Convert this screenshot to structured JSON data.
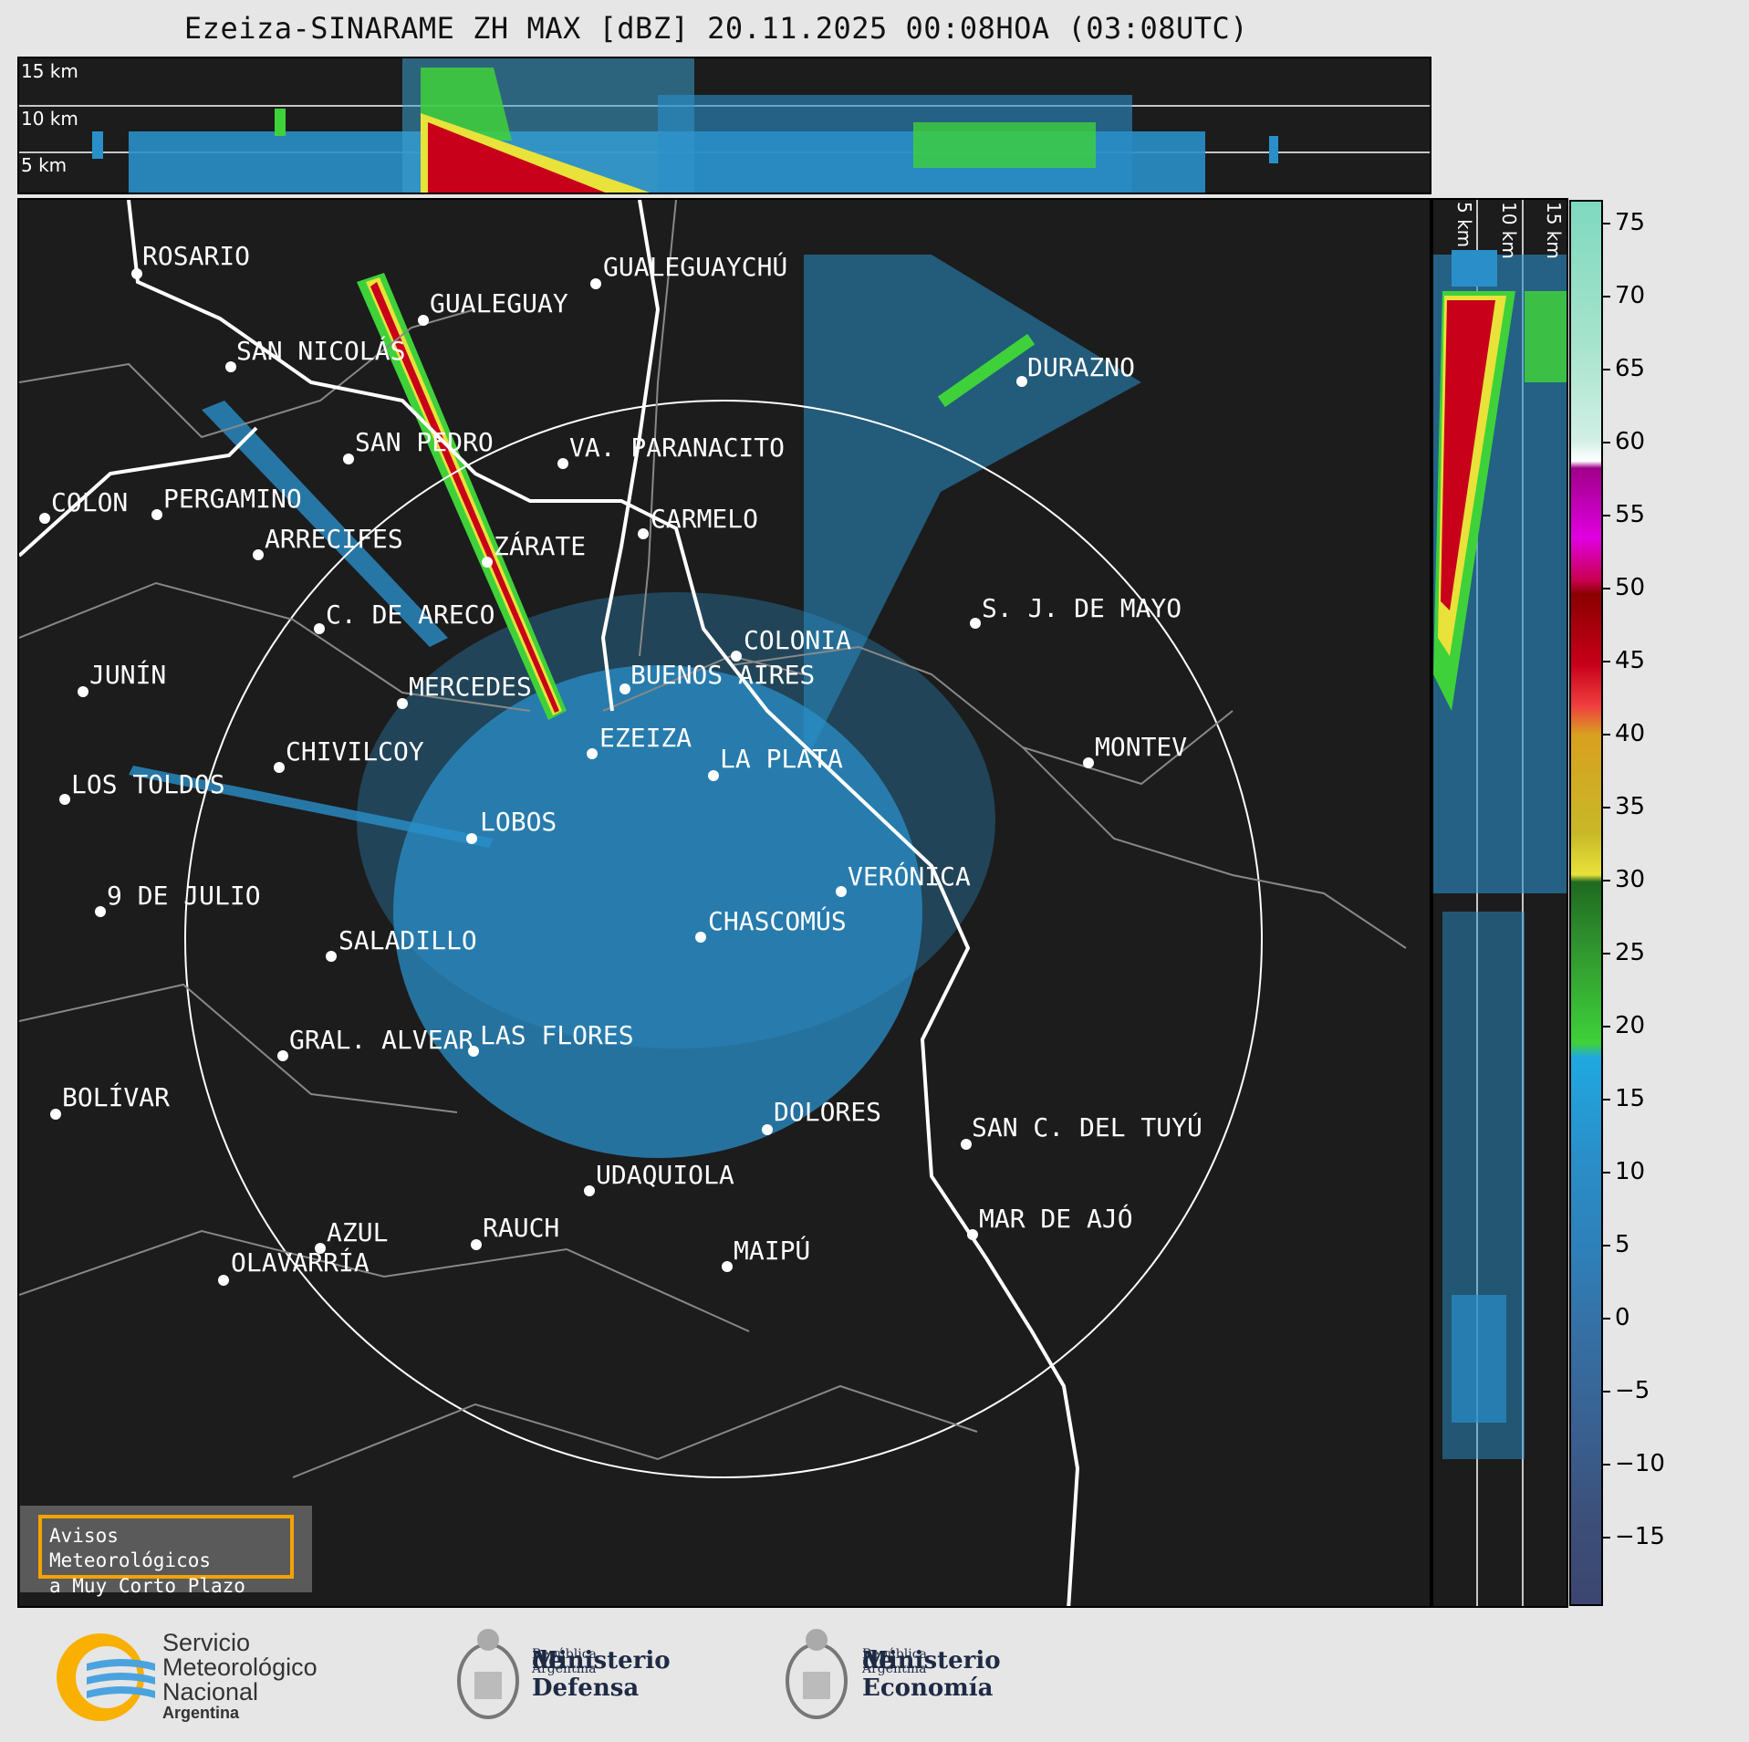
{
  "title": "Ezeiza-SINARAME ZH MAX [dBZ] 20.11.2025 00:08HOA (03:08UTC)",
  "altitudes_top": [
    "15 km",
    "10 km",
    "5 km"
  ],
  "altitudes_right": [
    "5 km",
    "10 km",
    "15 km"
  ],
  "colorbar": {
    "ticks": [
      "75",
      "70",
      "65",
      "60",
      "55",
      "50",
      "45",
      "40",
      "35",
      "30",
      "25",
      "20",
      "15",
      "10",
      "5",
      "0",
      "−5",
      "−10",
      "−15"
    ]
  },
  "cities": [
    {
      "name": "ROSARIO"
    },
    {
      "name": "GUALEGUAYCHÚ"
    },
    {
      "name": "GUALEGUAY"
    },
    {
      "name": "SAN NICOLÁS"
    },
    {
      "name": "DURAZNO"
    },
    {
      "name": "SAN PEDRO"
    },
    {
      "name": "VA. PARANACITO"
    },
    {
      "name": "COLON"
    },
    {
      "name": "PERGAMINO"
    },
    {
      "name": "CARMELO"
    },
    {
      "name": "ARRECIFES"
    },
    {
      "name": "ZÁRATE"
    },
    {
      "name": "S. J. DE MAYO"
    },
    {
      "name": "C. DE ARECO"
    },
    {
      "name": "COLONIA"
    },
    {
      "name": "JUNÍN"
    },
    {
      "name": "BUENOS AIRES"
    },
    {
      "name": "MERCEDES"
    },
    {
      "name": "EZEIZA"
    },
    {
      "name": "MONTEV"
    },
    {
      "name": "CHIVILCOY"
    },
    {
      "name": "LA PLATA"
    },
    {
      "name": "LOS TOLDOS"
    },
    {
      "name": "LOBOS"
    },
    {
      "name": "VERÓNICA"
    },
    {
      "name": "9 DE JULIO"
    },
    {
      "name": "CHASCOMÚS"
    },
    {
      "name": "SALADILLO"
    },
    {
      "name": "GRAL. ALVEAR"
    },
    {
      "name": "LAS FLORES"
    },
    {
      "name": "BOLÍVAR"
    },
    {
      "name": "DOLORES"
    },
    {
      "name": "SAN C. DEL TUYÚ"
    },
    {
      "name": "UDAQUIOLA"
    },
    {
      "name": "AZUL"
    },
    {
      "name": "RAUCH"
    },
    {
      "name": "MAR DE AJÓ"
    },
    {
      "name": "OLAVARRÍA"
    },
    {
      "name": "MAIPÚ"
    }
  ],
  "notice": {
    "line1": "Avisos Meteorológicos",
    "line2": "a Muy Corto Plazo"
  },
  "logos": {
    "smn": {
      "line1": "Servicio",
      "line2": "Meteorológico",
      "line3": "Nacional",
      "line4": "Argentina"
    },
    "defensa": {
      "line1": "Ministerio",
      "line2": "de Defensa",
      "line3": "República Argentina"
    },
    "economia": {
      "line1": "Ministerio",
      "line2": "de Economía",
      "line3": "República Argentina"
    }
  },
  "colors": {
    "background": "#1c1c1c",
    "echo_blue": "#2a8fc9",
    "echo_green": "#3fd13a",
    "echo_yellow": "#e8e23a",
    "echo_red": "#c8001a",
    "notice_border": "#f5a300"
  }
}
